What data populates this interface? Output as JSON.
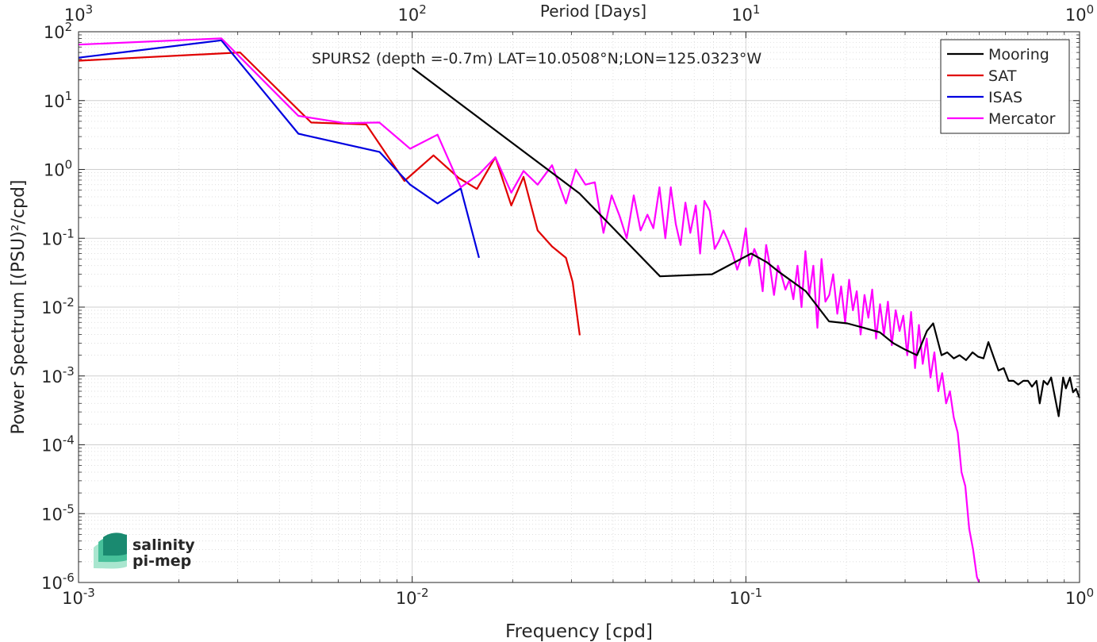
{
  "chart_data": {
    "type": "line",
    "title": "SPURS2 (depth =-0.7m) LAT=10.0508°N;LON=125.0323°W",
    "xlabel": "Frequency [cpd]",
    "ylabel": "Power Spectrum [(PSU)²/cpd]",
    "top_xlabel": "Period [Days]",
    "x_scale": "log",
    "y_scale": "log",
    "xlim": [
      0.001,
      1
    ],
    "ylim": [
      1e-06,
      100
    ],
    "grid": true,
    "legend_position": "top-right",
    "x_ticks": [
      {
        "value": 0.001,
        "base": "10",
        "exp": "-3"
      },
      {
        "value": 0.01,
        "base": "10",
        "exp": "-2"
      },
      {
        "value": 0.1,
        "base": "10",
        "exp": "-1"
      },
      {
        "value": 1,
        "base": "10",
        "exp": "0"
      }
    ],
    "top_ticks": [
      {
        "value": 1000,
        "base": "10",
        "exp": "3"
      },
      {
        "value": 100,
        "base": "10",
        "exp": "2"
      },
      {
        "value": 10,
        "base": "10",
        "exp": "1"
      },
      {
        "value": 1,
        "base": "10",
        "exp": "0"
      }
    ],
    "y_ticks": [
      {
        "value": 1e-06,
        "base": "10",
        "exp": "-6"
      },
      {
        "value": 1e-05,
        "base": "10",
        "exp": "-5"
      },
      {
        "value": 0.0001,
        "base": "10",
        "exp": "-4"
      },
      {
        "value": 0.001,
        "base": "10",
        "exp": "-3"
      },
      {
        "value": 0.01,
        "base": "10",
        "exp": "-2"
      },
      {
        "value": 0.1,
        "base": "10",
        "exp": "-1"
      },
      {
        "value": 1,
        "base": "10",
        "exp": "0"
      },
      {
        "value": 10,
        "base": "10",
        "exp": "1"
      },
      {
        "value": 100,
        "base": "10",
        "exp": "2"
      }
    ],
    "series": [
      {
        "name": "Mooring",
        "color": "#000000",
        "x": [
          0.01,
          0.0317,
          0.0553,
          0.0792,
          0.1037,
          0.1154,
          0.1262,
          0.1512,
          0.1775,
          0.2013,
          0.2255,
          0.2522,
          0.2764,
          0.3009,
          0.3258,
          0.3488,
          0.3643,
          0.3859,
          0.4013,
          0.4198,
          0.4368,
          0.4568,
          0.4779,
          0.497,
          0.5154,
          0.5332,
          0.5526,
          0.5714,
          0.5925,
          0.613,
          0.6338,
          0.6549,
          0.6783,
          0.7008,
          0.72,
          0.7429,
          0.7598,
          0.7804,
          0.8011,
          0.8222,
          0.8448,
          0.8659,
          0.8931,
          0.9101,
          0.9359,
          0.956,
          0.9764,
          1.0
        ],
        "y": [
          30,
          0.45,
          0.028,
          0.03,
          0.06,
          0.045,
          0.032,
          0.017,
          0.0062,
          0.0058,
          0.005,
          0.0043,
          0.003,
          0.0024,
          0.002,
          0.0045,
          0.0058,
          0.002,
          0.0022,
          0.0018,
          0.002,
          0.0017,
          0.0022,
          0.0019,
          0.0018,
          0.0031,
          0.0019,
          0.0012,
          0.0013,
          0.00085,
          0.00085,
          0.00075,
          0.00085,
          0.00085,
          0.0007,
          0.00085,
          0.0004,
          0.00085,
          0.00075,
          0.00095,
          0.00048,
          0.00026,
          0.00095,
          0.00066,
          0.00095,
          0.00058,
          0.00065,
          0.00048
        ]
      },
      {
        "name": "SAT",
        "color": "#e00000",
        "x": [
          0.001,
          0.00305,
          0.00498,
          0.00728,
          0.00948,
          0.01158,
          0.01379,
          0.01563,
          0.01775,
          0.01981,
          0.02156,
          0.02376,
          0.02625,
          0.02889,
          0.03027,
          0.03178
        ],
        "y": [
          38,
          50,
          4.8,
          4.5,
          0.68,
          1.6,
          0.75,
          0.52,
          1.5,
          0.3,
          0.78,
          0.13,
          0.076,
          0.052,
          0.023,
          0.0039
        ]
      },
      {
        "name": "ISAS",
        "color": "#0000e0",
        "x": [
          0.001,
          0.00268,
          0.00456,
          0.00798,
          0.00986,
          0.01191,
          0.01398,
          0.01586
        ],
        "y": [
          42,
          75,
          3.3,
          1.8,
          0.6,
          0.32,
          0.53,
          0.052
        ]
      },
      {
        "name": "Mercator",
        "color": "#ff00ff",
        "x": [
          0.001,
          0.00268,
          0.00456,
          0.00628,
          0.00798,
          0.00986,
          0.01191,
          0.01398,
          0.01586,
          0.01775,
          0.01981,
          0.02156,
          0.02376,
          0.02625,
          0.02889,
          0.03092,
          0.03306,
          0.03527,
          0.03744,
          0.03961,
          0.04186,
          0.04394,
          0.04614,
          0.04835,
          0.05068,
          0.05282,
          0.05509,
          0.05737,
          0.05958,
          0.06165,
          0.06372,
          0.06588,
          0.06815,
          0.07078,
          0.07292,
          0.07515,
          0.07795,
          0.08062,
          0.08298,
          0.08566,
          0.08861,
          0.09125,
          0.09418,
          0.09658,
          0.09997,
          0.1024,
          0.106,
          0.109,
          0.1123,
          0.115,
          0.118,
          0.1214,
          0.1247,
          0.1281,
          0.1314,
          0.1352,
          0.1388,
          0.1428,
          0.1468,
          0.1508,
          0.1549,
          0.1593,
          0.1638,
          0.1685,
          0.1731,
          0.1778,
          0.1827,
          0.1879,
          0.1929,
          0.1984,
          0.2039,
          0.2093,
          0.2149,
          0.2208,
          0.2268,
          0.2329,
          0.2391,
          0.2456,
          0.2524,
          0.2593,
          0.2665,
          0.2737,
          0.2811,
          0.2888,
          0.2963,
          0.3046,
          0.3126,
          0.3213,
          0.33,
          0.3389,
          0.3482,
          0.3575,
          0.3673,
          0.3773,
          0.3876,
          0.3982,
          0.4088,
          0.4197,
          0.4314,
          0.4429,
          0.4546,
          0.4671,
          0.4797,
          0.4925,
          0.5
        ],
        "y": [
          65,
          80,
          6,
          4.7,
          4.8,
          2,
          3.2,
          0.55,
          0.85,
          1.5,
          0.46,
          0.95,
          0.6,
          1.15,
          0.32,
          1.0,
          0.6,
          0.65,
          0.12,
          0.42,
          0.21,
          0.1,
          0.42,
          0.13,
          0.22,
          0.14,
          0.55,
          0.1,
          0.55,
          0.16,
          0.08,
          0.33,
          0.12,
          0.3,
          0.06,
          0.35,
          0.25,
          0.07,
          0.09,
          0.13,
          0.09,
          0.06,
          0.035,
          0.05,
          0.14,
          0.04,
          0.07,
          0.05,
          0.017,
          0.08,
          0.04,
          0.015,
          0.04,
          0.028,
          0.018,
          0.025,
          0.013,
          0.04,
          0.01,
          0.065,
          0.015,
          0.04,
          0.005,
          0.05,
          0.012,
          0.015,
          0.03,
          0.008,
          0.02,
          0.006,
          0.025,
          0.009,
          0.017,
          0.004,
          0.015,
          0.007,
          0.018,
          0.0035,
          0.011,
          0.004,
          0.012,
          0.0028,
          0.009,
          0.0045,
          0.0075,
          0.002,
          0.0085,
          0.0013,
          0.0055,
          0.0015,
          0.0035,
          0.00095,
          0.0022,
          0.0006,
          0.0011,
          0.0004,
          0.0006,
          0.00025,
          0.00015,
          4e-05,
          2.5e-05,
          6e-06,
          3e-06,
          1.2e-06,
          1e-06
        ]
      }
    ]
  },
  "watermark": {
    "line1": "salinity",
    "line2": "pi-mep",
    "color_dark": "#1a8a70",
    "color_light": "#6fd3b0"
  }
}
